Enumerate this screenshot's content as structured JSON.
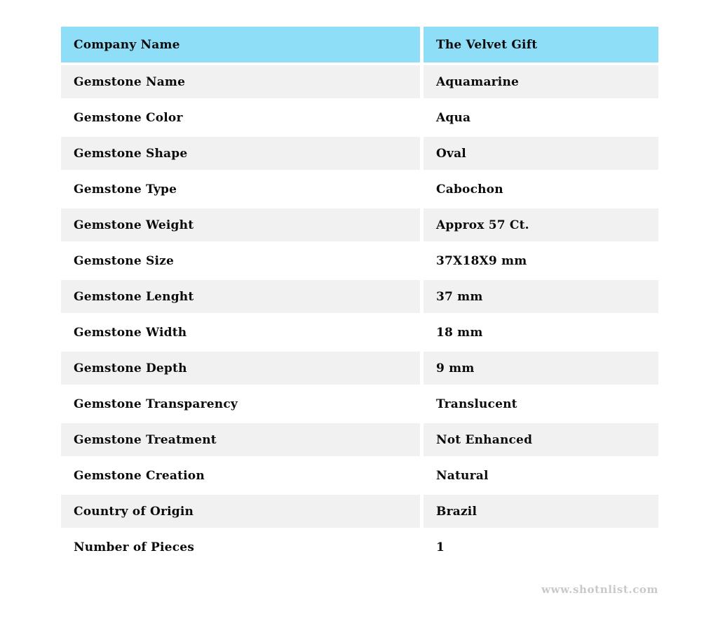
{
  "colors": {
    "header_bg": "#8edef8",
    "stripe_bg": "#f1f1f1",
    "text": "#0b0b0b",
    "watermark": "#c9c9c9"
  },
  "table": {
    "header": {
      "label": "Company Name",
      "value": "The Velvet Gift"
    },
    "rows": [
      {
        "label": "Gemstone Name",
        "value": "Aquamarine"
      },
      {
        "label": "Gemstone Color",
        "value": "Aqua"
      },
      {
        "label": "Gemstone Shape",
        "value": "Oval"
      },
      {
        "label": "Gemstone Type",
        "value": "Cabochon"
      },
      {
        "label": "Gemstone Weight",
        "value": "Approx 57 Ct."
      },
      {
        "label": "Gemstone Size",
        "value": "37X18X9 mm"
      },
      {
        "label": "Gemstone Lenght",
        "value": "37 mm"
      },
      {
        "label": "Gemstone Width",
        "value": "18 mm"
      },
      {
        "label": "Gemstone Depth",
        "value": "9 mm"
      },
      {
        "label": "Gemstone Transparency",
        "value": "Translucent"
      },
      {
        "label": "Gemstone Treatment",
        "value": "Not Enhanced"
      },
      {
        "label": "Gemstone Creation",
        "value": "Natural"
      },
      {
        "label": "Country of Origin",
        "value": "Brazil"
      },
      {
        "label": "Number of Pieces",
        "value": "1"
      }
    ]
  },
  "footer": {
    "watermark": "www.shotnlist.com"
  }
}
